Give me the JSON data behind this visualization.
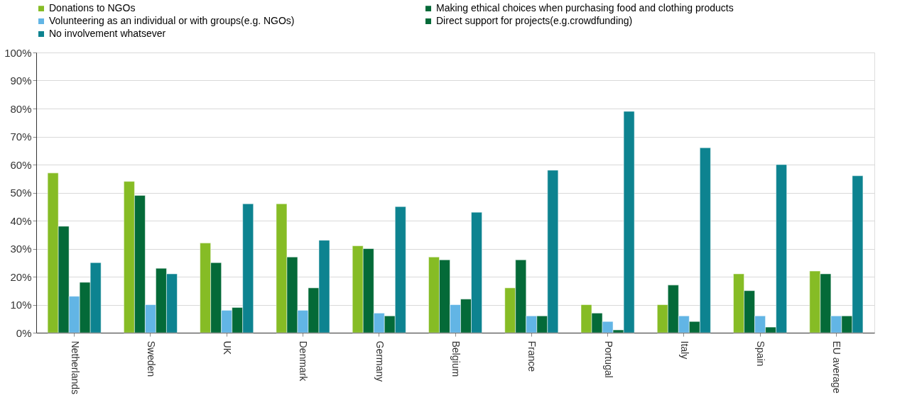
{
  "chart_data": {
    "type": "bar",
    "categories": [
      "Netherlands",
      "Sweden",
      "UK",
      "Denmark",
      "Germany",
      "Belgium",
      "France",
      "Portugal",
      "Italy",
      "Spain",
      "EU average"
    ],
    "series": [
      {
        "name": "Donations to NGOs",
        "color": "#86bc25",
        "values": [
          57,
          54,
          32,
          46,
          31,
          27,
          16,
          10,
          10,
          21,
          22
        ]
      },
      {
        "name": "Making ethical choices when purchasing food and clothing products",
        "color": "#046a38",
        "values": [
          38,
          49,
          25,
          27,
          30,
          26,
          26,
          7,
          17,
          15,
          21
        ]
      },
      {
        "name": "Volunteering as an individual or with groups(e.g. NGOs)",
        "color": "#62b5e5",
        "values": [
          13,
          10,
          8,
          8,
          7,
          10,
          6,
          4,
          6,
          6,
          6
        ]
      },
      {
        "name": "Direct support for projects(e.g.crowdfunding)",
        "color": "#046a38",
        "values": [
          18,
          23,
          9,
          16,
          6,
          12,
          6,
          1,
          4,
          2,
          6
        ]
      },
      {
        "name": "No involvement whatsever",
        "color": "#0d8390",
        "values": [
          25,
          21,
          46,
          33,
          45,
          43,
          58,
          79,
          66,
          60,
          56
        ]
      }
    ],
    "ylim": [
      0,
      100
    ],
    "yticks": [
      {
        "value": 0,
        "label": "0%"
      },
      {
        "value": 10,
        "label": "10%"
      },
      {
        "value": 20,
        "label": "20%"
      },
      {
        "value": 30,
        "label": "30%"
      },
      {
        "value": 40,
        "label": "40%"
      },
      {
        "value": 50,
        "label": "50%"
      },
      {
        "value": 60,
        "label": "60%"
      },
      {
        "value": 70,
        "label": "70%"
      },
      {
        "value": 80,
        "label": "80%"
      },
      {
        "value": 90,
        "label": "90%"
      },
      {
        "value": 100,
        "label": "100%"
      }
    ],
    "grid": "y",
    "legend": "top"
  }
}
